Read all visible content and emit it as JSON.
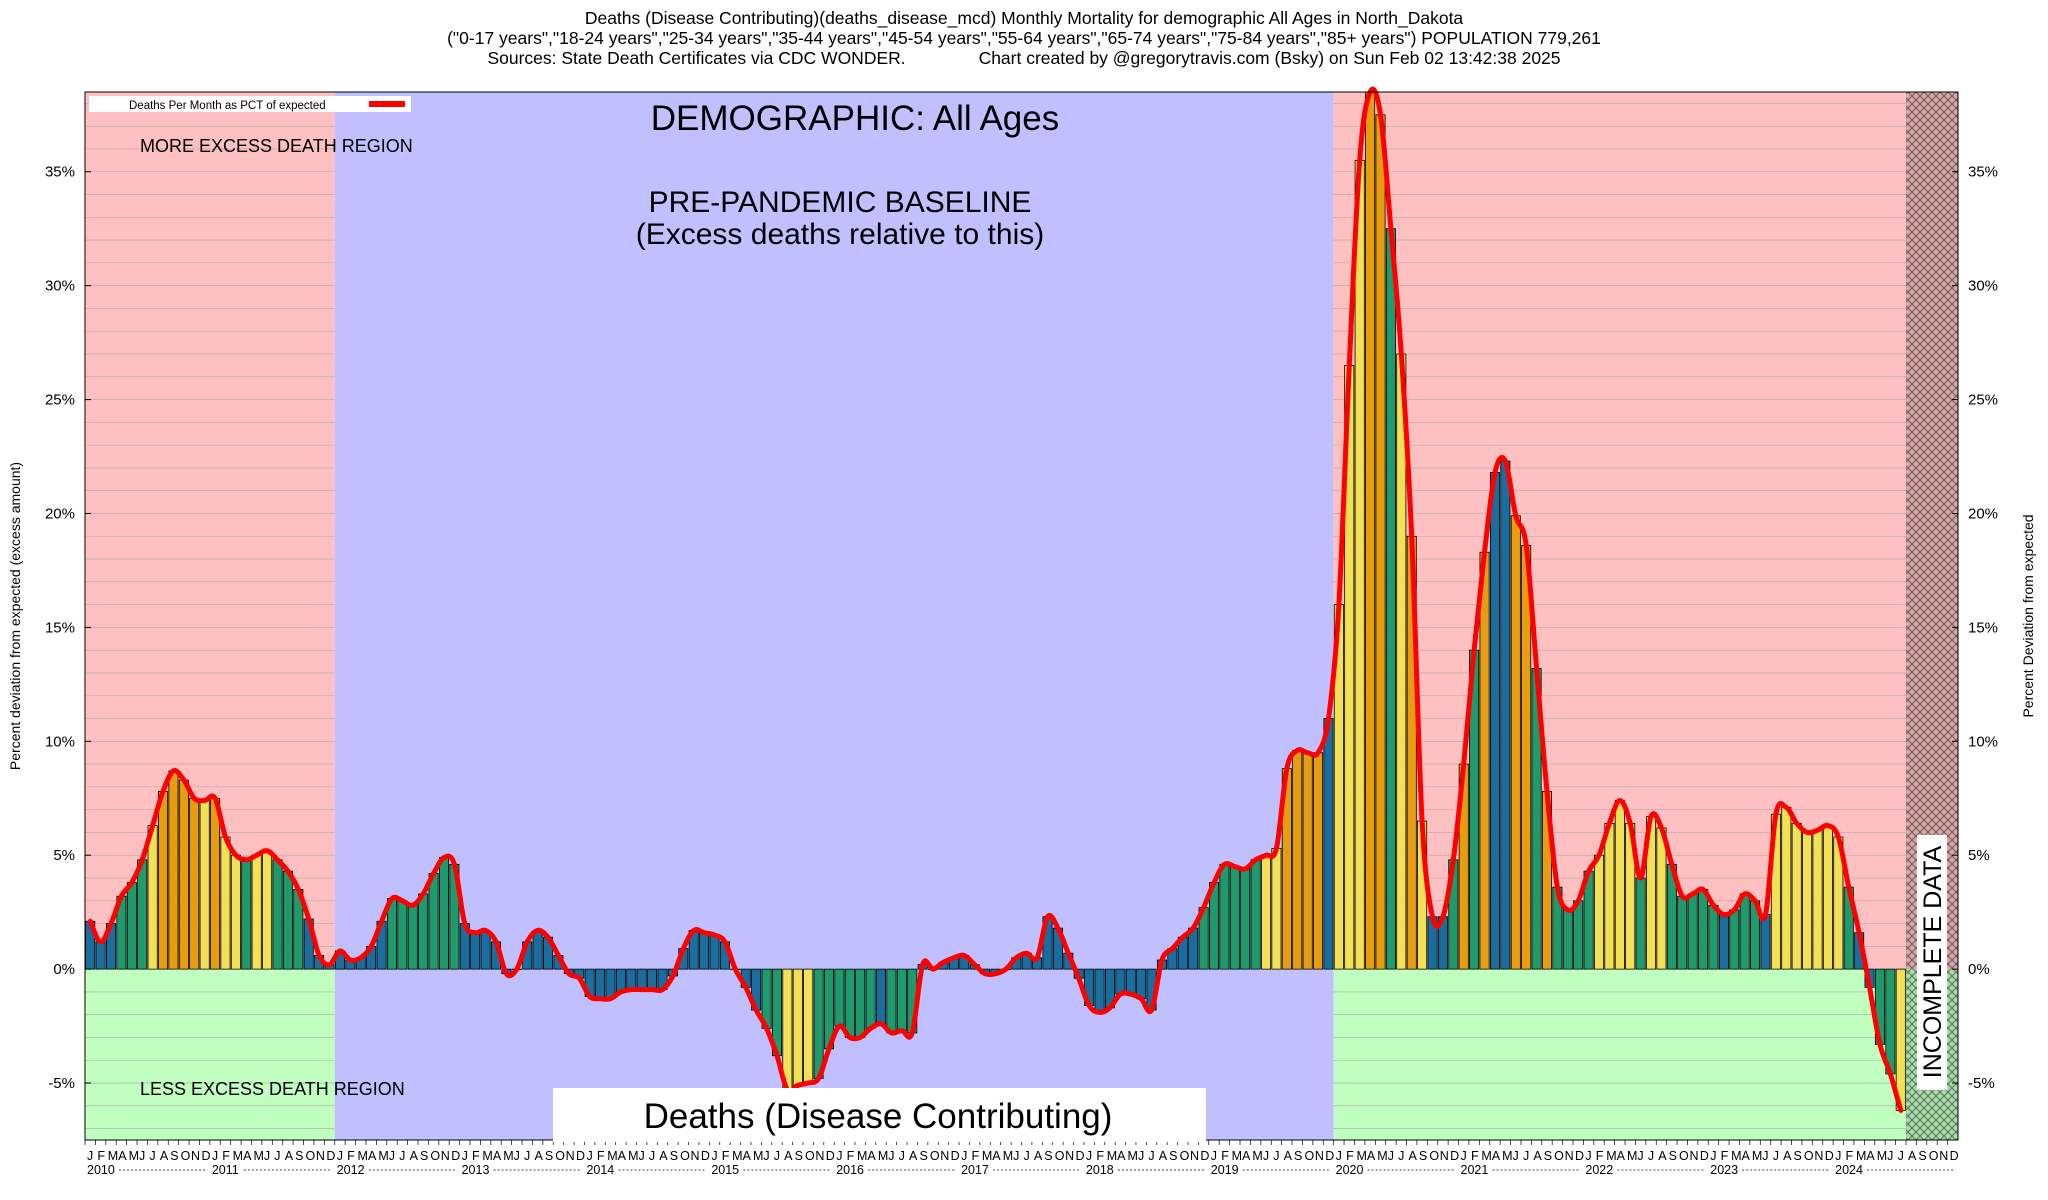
{
  "title_lines": [
    "Deaths (Disease Contributing)(deaths_disease_mcd) Monthly Mortality for demographic All Ages in North_Dakota",
    "(\"0-17 years\",\"18-24 years\",\"25-34 years\",\"35-44 years\",\"45-54 years\",\"55-64 years\",\"65-74 years\",\"75-84 years\",\"85+ years\") POPULATION 779,261",
    "Sources: State Death Certificates via CDC WONDER.               Chart created by @gregorytravis.com (Bsky) on Sun Feb 02 13:42:38 2025"
  ],
  "chart_data": {
    "type": "bar",
    "title": "DEMOGRAPHIC: All Ages",
    "ylabel_left": "Percent deviation from expected (excess amount)",
    "ylabel_right": "Percent Deviation from expected",
    "ylim": [
      -7.5,
      38.5
    ],
    "yticks": [
      -5,
      0,
      5,
      10,
      15,
      20,
      25,
      30,
      35
    ],
    "ytick_labels": [
      "-5%",
      "0%",
      "5%",
      "10%",
      "15%",
      "20%",
      "25%",
      "30%",
      "35%"
    ],
    "legend": {
      "label": "Deaths Per Month as PCT of expected",
      "position": "top-left"
    },
    "month_letters": [
      "J",
      "F",
      "M",
      "A",
      "M",
      "J",
      "J",
      "A",
      "S",
      "O",
      "N",
      "D"
    ],
    "years": [
      "2010",
      "2011",
      "2012",
      "2013",
      "2014",
      "2015",
      "2016",
      "2017",
      "2018",
      "2019",
      "2020",
      "2021",
      "2022",
      "2023",
      "2024"
    ],
    "start": "2010-01",
    "series": [
      {
        "name": "Deaths Per Month as PCT of expected",
        "values": [
          2.1,
          1.2,
          2.0,
          3.2,
          3.8,
          4.8,
          6.3,
          7.8,
          8.7,
          8.3,
          7.5,
          7.4,
          7.5,
          5.8,
          5.0,
          4.8,
          5.0,
          5.2,
          4.8,
          4.3,
          3.5,
          2.2,
          0.6,
          0.2,
          0.8,
          0.4,
          0.5,
          1.0,
          2.1,
          3.1,
          3.0,
          2.8,
          3.3,
          4.2,
          4.9,
          4.6,
          2.0,
          1.6,
          1.7,
          1.2,
          -0.2,
          0.0,
          1.2,
          1.7,
          1.4,
          0.6,
          -0.2,
          -0.4,
          -1.2,
          -1.3,
          -1.3,
          -1.0,
          -0.9,
          -0.9,
          -0.9,
          -0.9,
          -0.3,
          0.9,
          1.7,
          1.6,
          1.5,
          1.2,
          0.0,
          -0.8,
          -1.8,
          -2.6,
          -3.8,
          -5.3,
          -5.1,
          -5.0,
          -4.8,
          -3.5,
          -2.5,
          -3.0,
          -3.0,
          -2.6,
          -2.4,
          -2.8,
          -2.7,
          -2.8,
          0.2,
          0.0,
          0.3,
          0.5,
          0.6,
          0.2,
          -0.2,
          -0.2,
          0.0,
          0.5,
          0.7,
          0.5,
          2.3,
          1.8,
          0.7,
          -0.4,
          -1.6,
          -1.9,
          -1.7,
          -1.1,
          -1.1,
          -1.3,
          -1.8,
          0.4,
          0.9,
          1.4,
          1.8,
          2.7,
          3.8,
          4.6,
          4.5,
          4.4,
          4.8,
          5.0,
          5.3,
          8.8,
          9.6,
          9.5,
          9.5,
          11.0,
          16.0,
          26.5,
          35.5,
          38.5,
          37.5,
          32.5,
          27.0,
          19.0,
          6.5,
          2.3,
          2.3,
          4.8,
          9.0,
          14.0,
          18.3,
          21.8,
          22.3,
          19.9,
          18.6,
          13.2,
          7.8,
          3.6,
          2.6,
          3.0,
          4.3,
          5.0,
          6.4,
          7.4,
          6.4,
          4.0,
          6.7,
          6.2,
          4.6,
          3.2,
          3.3,
          3.5,
          2.8,
          2.4,
          2.6,
          3.3,
          3.0,
          2.4,
          6.8,
          7.1,
          6.4,
          6.0,
          6.1,
          6.3,
          5.8,
          3.6,
          1.6,
          -0.8,
          -3.3,
          -4.6,
          -6.2
        ]
      }
    ],
    "colors": {
      "line": "#ff0000",
      "excess_region": "#fec0c0",
      "less_region": "#c0ffc0",
      "baseline_region": "#c0c0ff",
      "bar_blue": "#1a6e9e",
      "bar_green": "#1f9a6a",
      "bar_yellow": "#f2e155",
      "bar_orange": "#e69e10"
    }
  },
  "annotations": {
    "excess_region": "MORE EXCESS DEATH REGION",
    "less_region": "LESS EXCESS DEATH REGION",
    "baseline_title": "PRE-PANDEMIC BASELINE",
    "baseline_subtitle": "(Excess deaths relative to this)",
    "metric_label": "Deaths (Disease Contributing)",
    "incomplete": "INCOMPLETE DATA"
  }
}
